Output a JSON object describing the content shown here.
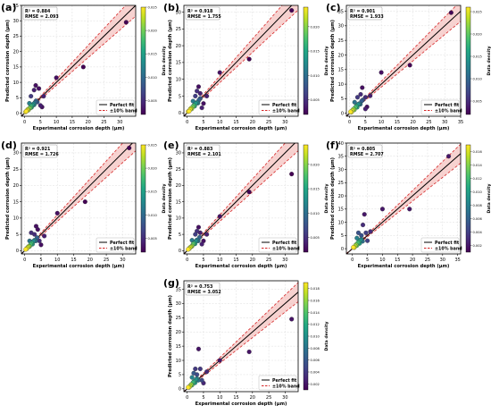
{
  "common": {
    "xlabel": "Experimental corrosion depth (μm)",
    "ylabel": "Predicted corrosion depth (μm)",
    "cbar_label": "Data density",
    "legend": {
      "perfect": "Perfect fit",
      "band": "±10% band"
    },
    "colors": {
      "perfect": "#000000",
      "band": "#d62728",
      "band_fill": "#f4c3c0"
    }
  },
  "chart_data": [
    {
      "panel": "(a)",
      "type": "scatter",
      "r2": "R² = 0.884",
      "rmse": "RMSE = 2.093",
      "xlim": [
        -1,
        35
      ],
      "ylim": [
        -1,
        35
      ],
      "xticks": [
        0,
        5,
        10,
        15,
        20,
        25,
        30
      ],
      "yticks": [
        0,
        5,
        10,
        15,
        20,
        25,
        30,
        35
      ],
      "cbar": [
        0.002,
        0.025
      ],
      "cbar_ticks": [
        "0.005",
        "0.010",
        "0.015",
        "0.020",
        "0.025"
      ],
      "legend_position": "lower-right",
      "points": [
        {
          "x": 0.3,
          "y": 0.4,
          "d": 0.025
        },
        {
          "x": 0.5,
          "y": 0.6,
          "d": 0.025
        },
        {
          "x": 0.8,
          "y": 0.9,
          "d": 0.024
        },
        {
          "x": 1.0,
          "y": 1.2,
          "d": 0.023
        },
        {
          "x": 1.2,
          "y": 1.0,
          "d": 0.022
        },
        {
          "x": 1.5,
          "y": 1.6,
          "d": 0.02
        },
        {
          "x": 1.8,
          "y": 1.7,
          "d": 0.019
        },
        {
          "x": 2.0,
          "y": 2.3,
          "d": 0.017
        },
        {
          "x": 2.2,
          "y": 1.9,
          "d": 0.016
        },
        {
          "x": 2.5,
          "y": 2.6,
          "d": 0.014
        },
        {
          "x": 2.8,
          "y": 3.0,
          "d": 0.013
        },
        {
          "x": 3.0,
          "y": 2.7,
          "d": 0.012
        },
        {
          "x": 3.3,
          "y": 3.5,
          "d": 0.01
        },
        {
          "x": 3.6,
          "y": 4.0,
          "d": 0.009
        },
        {
          "x": 4.0,
          "y": 3.6,
          "d": 0.008
        },
        {
          "x": 1.5,
          "y": 3.2,
          "d": 0.012
        },
        {
          "x": 2.0,
          "y": 5.5,
          "d": 0.006
        },
        {
          "x": 3.0,
          "y": 7.5,
          "d": 0.004
        },
        {
          "x": 3.5,
          "y": 9.0,
          "d": 0.003
        },
        {
          "x": 4.5,
          "y": 8.0,
          "d": 0.003
        },
        {
          "x": 5.0,
          "y": 2.5,
          "d": 0.004
        },
        {
          "x": 5.5,
          "y": 2.0,
          "d": 0.003
        },
        {
          "x": 6.0,
          "y": 5.5,
          "d": 0.004
        },
        {
          "x": 10.0,
          "y": 11.5,
          "d": 0.003
        },
        {
          "x": 18.5,
          "y": 15.0,
          "d": 0.002
        },
        {
          "x": 32.0,
          "y": 29.5,
          "d": 0.002
        }
      ]
    },
    {
      "panel": "(b)",
      "type": "scatter",
      "r2": "R² = 0.918",
      "rmse": "RMSE = 1.755",
      "xlim": [
        -1,
        34
      ],
      "ylim": [
        -1,
        32
      ],
      "xticks": [
        0,
        5,
        10,
        15,
        20,
        25,
        30
      ],
      "yticks": [
        0,
        5,
        10,
        15,
        20,
        25,
        30
      ],
      "cbar": [
        0.002,
        0.024
      ],
      "cbar_ticks": [
        "0.005",
        "0.010",
        "0.015",
        "0.020"
      ],
      "legend_position": "lower-right",
      "points": [
        {
          "x": 0.3,
          "y": 0.4,
          "d": 0.024
        },
        {
          "x": 0.6,
          "y": 0.5,
          "d": 0.024
        },
        {
          "x": 0.9,
          "y": 1.0,
          "d": 0.023
        },
        {
          "x": 1.1,
          "y": 1.3,
          "d": 0.022
        },
        {
          "x": 1.4,
          "y": 1.2,
          "d": 0.021
        },
        {
          "x": 1.7,
          "y": 1.8,
          "d": 0.019
        },
        {
          "x": 2.0,
          "y": 2.2,
          "d": 0.017
        },
        {
          "x": 2.3,
          "y": 2.0,
          "d": 0.016
        },
        {
          "x": 2.6,
          "y": 2.8,
          "d": 0.014
        },
        {
          "x": 3.0,
          "y": 3.1,
          "d": 0.012
        },
        {
          "x": 3.3,
          "y": 2.9,
          "d": 0.011
        },
        {
          "x": 3.6,
          "y": 3.8,
          "d": 0.009
        },
        {
          "x": 4.0,
          "y": 4.3,
          "d": 0.008
        },
        {
          "x": 1.8,
          "y": 3.5,
          "d": 0.011
        },
        {
          "x": 2.5,
          "y": 5.0,
          "d": 0.006
        },
        {
          "x": 3.0,
          "y": 6.5,
          "d": 0.005
        },
        {
          "x": 3.5,
          "y": 7.8,
          "d": 0.003
        },
        {
          "x": 4.0,
          "y": 5.8,
          "d": 0.004
        },
        {
          "x": 4.5,
          "y": 1.5,
          "d": 0.004
        },
        {
          "x": 5.0,
          "y": 2.8,
          "d": 0.003
        },
        {
          "x": 6.0,
          "y": 5.0,
          "d": 0.004
        },
        {
          "x": 10.0,
          "y": 12.0,
          "d": 0.003
        },
        {
          "x": 19.0,
          "y": 16.0,
          "d": 0.002
        },
        {
          "x": 32.0,
          "y": 30.5,
          "d": 0.002
        }
      ]
    },
    {
      "panel": "(c)",
      "type": "scatter",
      "r2": "R² = 0.901",
      "rmse": "RMSE = 1.933",
      "xlim": [
        -1,
        35
      ],
      "ylim": [
        -1,
        37
      ],
      "xticks": [
        0,
        5,
        10,
        15,
        20,
        25,
        30,
        35
      ],
      "yticks": [
        0,
        5,
        10,
        15,
        20,
        25,
        30,
        35
      ],
      "cbar": [
        0.002,
        0.026
      ],
      "cbar_ticks": [
        "0.005",
        "0.010",
        "0.015",
        "0.020",
        "0.025"
      ],
      "legend_position": "lower-right",
      "points": [
        {
          "x": 0.3,
          "y": 0.5,
          "d": 0.026
        },
        {
          "x": 0.6,
          "y": 0.4,
          "d": 0.025
        },
        {
          "x": 0.9,
          "y": 1.0,
          "d": 0.024
        },
        {
          "x": 1.2,
          "y": 1.4,
          "d": 0.022
        },
        {
          "x": 1.5,
          "y": 1.2,
          "d": 0.021
        },
        {
          "x": 1.8,
          "y": 2.0,
          "d": 0.019
        },
        {
          "x": 2.1,
          "y": 2.4,
          "d": 0.017
        },
        {
          "x": 2.4,
          "y": 2.1,
          "d": 0.016
        },
        {
          "x": 2.7,
          "y": 3.0,
          "d": 0.014
        },
        {
          "x": 3.0,
          "y": 3.3,
          "d": 0.012
        },
        {
          "x": 3.4,
          "y": 3.1,
          "d": 0.011
        },
        {
          "x": 3.8,
          "y": 4.2,
          "d": 0.009
        },
        {
          "x": 4.2,
          "y": 4.6,
          "d": 0.008
        },
        {
          "x": 1.6,
          "y": 3.8,
          "d": 0.011
        },
        {
          "x": 2.5,
          "y": 5.5,
          "d": 0.006
        },
        {
          "x": 3.5,
          "y": 6.5,
          "d": 0.005
        },
        {
          "x": 4.0,
          "y": 8.8,
          "d": 0.003
        },
        {
          "x": 5.0,
          "y": 5.5,
          "d": 0.005
        },
        {
          "x": 5.0,
          "y": 1.5,
          "d": 0.004
        },
        {
          "x": 5.5,
          "y": 2.2,
          "d": 0.003
        },
        {
          "x": 6.5,
          "y": 6.0,
          "d": 0.004
        },
        {
          "x": 10.0,
          "y": 14.0,
          "d": 0.003
        },
        {
          "x": 19.0,
          "y": 16.5,
          "d": 0.002
        },
        {
          "x": 32.0,
          "y": 34.5,
          "d": 0.002
        }
      ]
    },
    {
      "panel": "(d)",
      "type": "scatter",
      "r2": "R² = 0.921",
      "rmse": "RMSE = 1.726",
      "xlim": [
        -1,
        34
      ],
      "ylim": [
        -1,
        33
      ],
      "xticks": [
        0,
        5,
        10,
        15,
        20,
        25,
        30
      ],
      "yticks": [
        0,
        5,
        10,
        15,
        20,
        25,
        30
      ],
      "cbar": [
        0.002,
        0.025
      ],
      "cbar_ticks": [
        "0.005",
        "0.010",
        "0.015",
        "0.020",
        "0.025"
      ],
      "legend_position": "lower-right",
      "points": [
        {
          "x": 0.3,
          "y": 0.4,
          "d": 0.025
        },
        {
          "x": 0.6,
          "y": 0.6,
          "d": 0.024
        },
        {
          "x": 0.9,
          "y": 1.0,
          "d": 0.023
        },
        {
          "x": 1.2,
          "y": 1.3,
          "d": 0.022
        },
        {
          "x": 1.5,
          "y": 1.3,
          "d": 0.02
        },
        {
          "x": 1.8,
          "y": 1.9,
          "d": 0.018
        },
        {
          "x": 2.1,
          "y": 2.3,
          "d": 0.017
        },
        {
          "x": 2.4,
          "y": 2.0,
          "d": 0.015
        },
        {
          "x": 2.7,
          "y": 2.9,
          "d": 0.013
        },
        {
          "x": 3.0,
          "y": 3.2,
          "d": 0.012
        },
        {
          "x": 3.4,
          "y": 3.0,
          "d": 0.01
        },
        {
          "x": 3.8,
          "y": 4.0,
          "d": 0.009
        },
        {
          "x": 1.5,
          "y": 3.0,
          "d": 0.011
        },
        {
          "x": 2.0,
          "y": 5.5,
          "d": 0.005
        },
        {
          "x": 3.0,
          "y": 5.0,
          "d": 0.005
        },
        {
          "x": 3.5,
          "y": 7.5,
          "d": 0.003
        },
        {
          "x": 4.0,
          "y": 6.5,
          "d": 0.003
        },
        {
          "x": 4.5,
          "y": 3.0,
          "d": 0.005
        },
        {
          "x": 5.0,
          "y": 1.8,
          "d": 0.003
        },
        {
          "x": 6.0,
          "y": 4.5,
          "d": 0.004
        },
        {
          "x": 10.0,
          "y": 11.5,
          "d": 0.003
        },
        {
          "x": 18.5,
          "y": 15.0,
          "d": 0.002
        },
        {
          "x": 32.0,
          "y": 31.5,
          "d": 0.002
        }
      ]
    },
    {
      "panel": "(e)",
      "type": "scatter",
      "r2": "R² = 0.883",
      "rmse": "RMSE = 2.101",
      "xlim": [
        -1,
        34
      ],
      "ylim": [
        -1,
        33
      ],
      "xticks": [
        0,
        5,
        10,
        15,
        20,
        25,
        30
      ],
      "yticks": [
        0,
        5,
        10,
        15,
        20,
        25,
        30
      ],
      "cbar": [
        0.002,
        0.024
      ],
      "cbar_ticks": [
        "0.005",
        "0.010",
        "0.015",
        "0.020"
      ],
      "legend_position": "lower-right",
      "points": [
        {
          "x": 0.3,
          "y": 0.4,
          "d": 0.024
        },
        {
          "x": 0.6,
          "y": 0.6,
          "d": 0.023
        },
        {
          "x": 0.9,
          "y": 1.0,
          "d": 0.022
        },
        {
          "x": 1.2,
          "y": 1.2,
          "d": 0.021
        },
        {
          "x": 1.5,
          "y": 1.4,
          "d": 0.02
        },
        {
          "x": 1.8,
          "y": 2.0,
          "d": 0.018
        },
        {
          "x": 2.1,
          "y": 2.3,
          "d": 0.016
        },
        {
          "x": 2.4,
          "y": 2.1,
          "d": 0.015
        },
        {
          "x": 2.7,
          "y": 2.9,
          "d": 0.013
        },
        {
          "x": 3.0,
          "y": 3.3,
          "d": 0.011
        },
        {
          "x": 3.4,
          "y": 3.0,
          "d": 0.01
        },
        {
          "x": 3.8,
          "y": 4.1,
          "d": 0.009
        },
        {
          "x": 1.5,
          "y": 3.2,
          "d": 0.011
        },
        {
          "x": 2.5,
          "y": 5.0,
          "d": 0.006
        },
        {
          "x": 3.0,
          "y": 6.0,
          "d": 0.005
        },
        {
          "x": 3.5,
          "y": 7.2,
          "d": 0.003
        },
        {
          "x": 4.0,
          "y": 5.5,
          "d": 0.004
        },
        {
          "x": 4.5,
          "y": 2.0,
          "d": 0.004
        },
        {
          "x": 5.0,
          "y": 3.0,
          "d": 0.003
        },
        {
          "x": 6.0,
          "y": 5.0,
          "d": 0.004
        },
        {
          "x": 10.0,
          "y": 10.5,
          "d": 0.003
        },
        {
          "x": 19.0,
          "y": 18.0,
          "d": 0.002
        },
        {
          "x": 32.0,
          "y": 23.5,
          "d": 0.002
        }
      ]
    },
    {
      "panel": "(f)",
      "type": "scatter",
      "r2": "R² = 0.805",
      "rmse": "RMSE = 2.707",
      "xlim": [
        -2,
        36
      ],
      "ylim": [
        -2,
        40
      ],
      "xticks": [
        0,
        5,
        10,
        15,
        20,
        25,
        30,
        35
      ],
      "yticks": [
        0,
        5,
        10,
        15,
        20,
        25,
        30,
        35,
        40
      ],
      "cbar": [
        0.001,
        0.017
      ],
      "cbar_ticks": [
        "0.002",
        "0.004",
        "0.006",
        "0.008",
        "0.010",
        "0.012",
        "0.014",
        "0.016"
      ],
      "legend_position": "lower-right",
      "points": [
        {
          "x": 0.3,
          "y": 0.5,
          "d": 0.017
        },
        {
          "x": 0.6,
          "y": 0.4,
          "d": 0.016
        },
        {
          "x": 0.9,
          "y": 1.0,
          "d": 0.015
        },
        {
          "x": 1.2,
          "y": 1.5,
          "d": 0.014
        },
        {
          "x": 1.5,
          "y": 1.2,
          "d": 0.013
        },
        {
          "x": 1.8,
          "y": 2.2,
          "d": 0.012
        },
        {
          "x": 2.1,
          "y": 2.6,
          "d": 0.011
        },
        {
          "x": 2.4,
          "y": 2.0,
          "d": 0.01
        },
        {
          "x": 2.7,
          "y": 3.2,
          "d": 0.009
        },
        {
          "x": 3.0,
          "y": 3.6,
          "d": 0.008
        },
        {
          "x": 3.4,
          "y": 2.8,
          "d": 0.007
        },
        {
          "x": 1.5,
          "y": 4.0,
          "d": 0.008
        },
        {
          "x": 2.0,
          "y": 6.0,
          "d": 0.005
        },
        {
          "x": 3.0,
          "y": 5.0,
          "d": 0.005
        },
        {
          "x": 3.5,
          "y": 9.0,
          "d": 0.003
        },
        {
          "x": 4.5,
          "y": 6.0,
          "d": 0.004
        },
        {
          "x": 4.0,
          "y": 13.0,
          "d": 0.002
        },
        {
          "x": 5.0,
          "y": 3.0,
          "d": 0.004
        },
        {
          "x": 6.0,
          "y": 6.5,
          "d": 0.003
        },
        {
          "x": 10.0,
          "y": 15.0,
          "d": 0.002
        },
        {
          "x": 19.0,
          "y": 15.0,
          "d": 0.002
        },
        {
          "x": 32.0,
          "y": 35.0,
          "d": 0.002
        }
      ]
    },
    {
      "panel": "(g)",
      "type": "scatter",
      "r2": "R² = 0.753",
      "rmse": "RMSE = 3.052",
      "xlim": [
        -1,
        34
      ],
      "ylim": [
        -1,
        38
      ],
      "xticks": [
        0,
        5,
        10,
        15,
        20,
        25,
        30
      ],
      "yticks": [
        0,
        5,
        10,
        15,
        20,
        25,
        30,
        35
      ],
      "cbar": [
        0.001,
        0.019
      ],
      "cbar_ticks": [
        "0.002",
        "0.004",
        "0.006",
        "0.008",
        "0.010",
        "0.012",
        "0.014",
        "0.016",
        "0.018"
      ],
      "legend_position": "lower-right",
      "points": [
        {
          "x": 0.3,
          "y": 0.5,
          "d": 0.019
        },
        {
          "x": 0.6,
          "y": 0.5,
          "d": 0.018
        },
        {
          "x": 0.9,
          "y": 1.0,
          "d": 0.017
        },
        {
          "x": 1.2,
          "y": 1.5,
          "d": 0.016
        },
        {
          "x": 1.5,
          "y": 1.3,
          "d": 0.014
        },
        {
          "x": 1.8,
          "y": 2.2,
          "d": 0.013
        },
        {
          "x": 2.1,
          "y": 2.6,
          "d": 0.012
        },
        {
          "x": 2.4,
          "y": 2.1,
          "d": 0.011
        },
        {
          "x": 2.7,
          "y": 3.2,
          "d": 0.01
        },
        {
          "x": 3.0,
          "y": 3.6,
          "d": 0.009
        },
        {
          "x": 3.4,
          "y": 3.0,
          "d": 0.008
        },
        {
          "x": 1.5,
          "y": 4.0,
          "d": 0.009
        },
        {
          "x": 2.0,
          "y": 5.5,
          "d": 0.006
        },
        {
          "x": 3.0,
          "y": 5.0,
          "d": 0.005
        },
        {
          "x": 2.5,
          "y": 7.0,
          "d": 0.004
        },
        {
          "x": 4.0,
          "y": 7.0,
          "d": 0.004
        },
        {
          "x": 3.5,
          "y": 14.0,
          "d": 0.002
        },
        {
          "x": 4.5,
          "y": 3.0,
          "d": 0.005
        },
        {
          "x": 5.0,
          "y": 2.0,
          "d": 0.003
        },
        {
          "x": 6.0,
          "y": 6.0,
          "d": 0.003
        },
        {
          "x": 10.0,
          "y": 10.0,
          "d": 0.002
        },
        {
          "x": 19.0,
          "y": 13.0,
          "d": 0.002
        },
        {
          "x": 32.0,
          "y": 24.5,
          "d": 0.002
        }
      ]
    }
  ]
}
